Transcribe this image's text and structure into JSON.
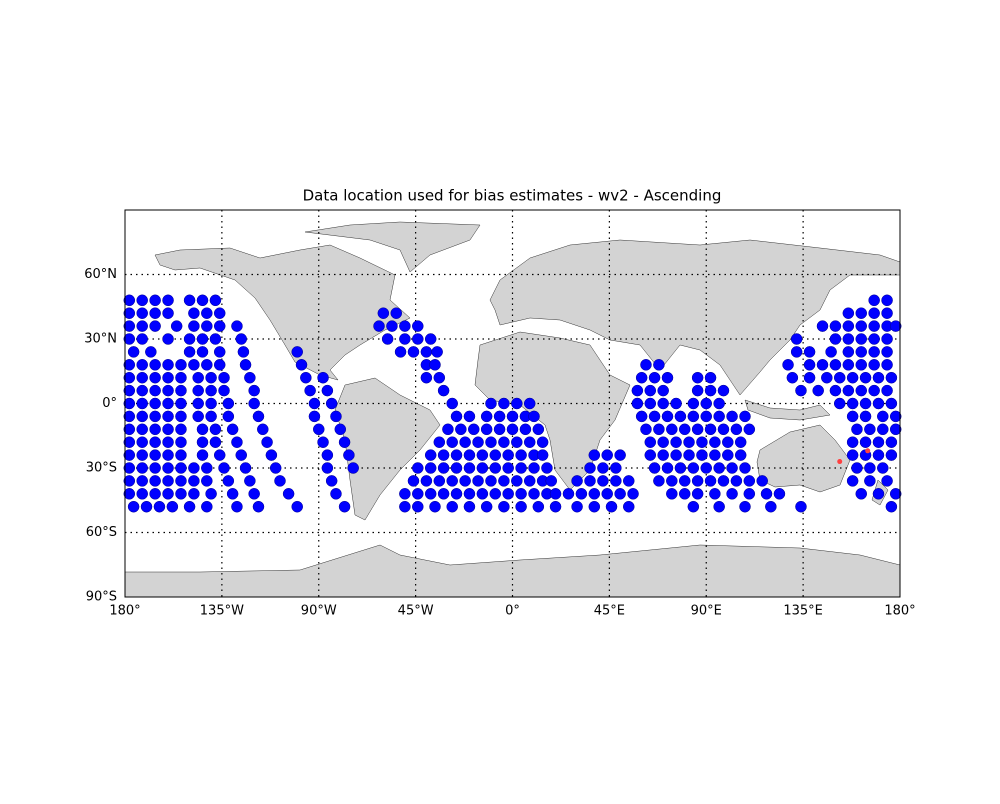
{
  "chart_data": {
    "type": "scatter",
    "title": "Data location used for bias estimates - wv2 - Ascending",
    "xlim": [
      -180,
      180
    ],
    "ylim": [
      -90,
      90
    ],
    "xticks": [
      {
        "value": -180,
        "label": "180°"
      },
      {
        "value": -135,
        "label": "135°W"
      },
      {
        "value": -90,
        "label": "90°W"
      },
      {
        "value": -45,
        "label": "45°W"
      },
      {
        "value": 0,
        "label": "0°"
      },
      {
        "value": 45,
        "label": "45°E"
      },
      {
        "value": 90,
        "label": "90°E"
      },
      {
        "value": 135,
        "label": "135°E"
      },
      {
        "value": 180,
        "label": "180°"
      }
    ],
    "yticks": [
      {
        "value": -90,
        "label": "90°S"
      },
      {
        "value": -60,
        "label": "60°S"
      },
      {
        "value": -30,
        "label": "30°S"
      },
      {
        "value": 0,
        "label": "0°"
      },
      {
        "value": 30,
        "label": "30°N"
      },
      {
        "value": 60,
        "label": "60°N"
      }
    ],
    "grid": true,
    "series": [
      {
        "color": "#0000ff",
        "y": 48,
        "x": [
          -178,
          -172,
          -166,
          -160,
          -150,
          -144,
          -138,
          168,
          174
        ]
      },
      {
        "color": "#0000ff",
        "y": 42,
        "x": [
          -178,
          -172,
          -166,
          -160,
          -148,
          -142,
          -136,
          -60,
          -54,
          156,
          162,
          168,
          174
        ]
      },
      {
        "color": "#0000ff",
        "y": 36,
        "x": [
          -178,
          -172,
          -166,
          -156,
          -148,
          -142,
          -136,
          -128,
          -62,
          -56,
          -50,
          -44,
          144,
          150,
          156,
          162,
          168,
          174,
          178
        ]
      },
      {
        "color": "#0000ff",
        "y": 30,
        "x": [
          -178,
          -172,
          -160,
          -150,
          -144,
          -138,
          -126,
          -58,
          -50,
          -44,
          -38,
          132,
          150,
          156,
          162,
          168,
          174
        ]
      },
      {
        "color": "#0000ff",
        "y": 24,
        "x": [
          -176,
          -168,
          -150,
          -144,
          -136,
          -125,
          -100,
          -52,
          -46,
          -40,
          -35,
          132,
          138,
          148,
          156,
          162,
          168,
          174
        ]
      },
      {
        "color": "#0000ff",
        "y": 18,
        "x": [
          -178,
          -172,
          -166,
          -160,
          -154,
          -148,
          -142,
          -136,
          -124,
          -98,
          -40,
          -36,
          62,
          68,
          128,
          138,
          144,
          150,
          156,
          162,
          168,
          174
        ]
      },
      {
        "color": "#0000ff",
        "y": 12,
        "x": [
          -178,
          -172,
          -166,
          -160,
          -154,
          -146,
          -140,
          -134,
          -122,
          -96,
          -88,
          -40,
          -34,
          60,
          66,
          72,
          86,
          92,
          130,
          138,
          146,
          152,
          158,
          164,
          170,
          176
        ]
      },
      {
        "color": "#0000ff",
        "y": 6,
        "x": [
          -178,
          -172,
          -166,
          -160,
          -154,
          -146,
          -140,
          -134,
          -120,
          -94,
          -86,
          -32,
          58,
          64,
          70,
          86,
          92,
          98,
          134,
          142,
          150,
          156,
          162,
          168,
          174
        ]
      },
      {
        "color": "#0000ff",
        "y": 0,
        "x": [
          -178,
          -172,
          -166,
          -160,
          -154,
          -146,
          -140,
          -132,
          -120,
          -92,
          -84,
          -28,
          -10,
          -4,
          2,
          8,
          58,
          64,
          70,
          76,
          84,
          90,
          96,
          152,
          158,
          164,
          170,
          176
        ]
      },
      {
        "color": "#0000ff",
        "y": -6,
        "x": [
          -178,
          -172,
          -166,
          -160,
          -154,
          -146,
          -140,
          -132,
          -118,
          -92,
          -82,
          -26,
          -20,
          -12,
          -6,
          0,
          6,
          10,
          60,
          66,
          72,
          78,
          84,
          90,
          96,
          102,
          108,
          158,
          164,
          172,
          178
        ]
      },
      {
        "color": "#0000ff",
        "y": -12,
        "x": [
          -178,
          -172,
          -166,
          -160,
          -154,
          -144,
          -138,
          -130,
          -116,
          -90,
          -80,
          -30,
          -24,
          -18,
          -12,
          -6,
          0,
          6,
          12,
          62,
          68,
          74,
          80,
          86,
          92,
          98,
          104,
          110,
          160,
          166,
          172,
          178
        ]
      },
      {
        "color": "#0000ff",
        "y": -18,
        "x": [
          -178,
          -172,
          -166,
          -160,
          -154,
          -144,
          -138,
          -128,
          -114,
          -88,
          -78,
          -34,
          -28,
          -22,
          -16,
          -10,
          -4,
          2,
          8,
          14,
          64,
          70,
          76,
          82,
          88,
          94,
          100,
          106,
          158,
          164,
          170,
          176
        ]
      },
      {
        "color": "#0000ff",
        "y": -24,
        "x": [
          -178,
          -172,
          -166,
          -160,
          -154,
          -144,
          -136,
          -126,
          -112,
          -86,
          -76,
          -38,
          -32,
          -26,
          -20,
          -14,
          -8,
          -2,
          4,
          10,
          14,
          38,
          44,
          50,
          64,
          70,
          76,
          82,
          88,
          94,
          100,
          106,
          158,
          164,
          170,
          176
        ]
      },
      {
        "color": "#0000ff",
        "y": -30,
        "x": [
          -178,
          -172,
          -166,
          -160,
          -154,
          -148,
          -142,
          -134,
          -124,
          -110,
          -86,
          -74,
          -44,
          -38,
          -32,
          -26,
          -20,
          -14,
          -8,
          -2,
          4,
          10,
          16,
          36,
          42,
          48,
          66,
          72,
          78,
          84,
          90,
          96,
          102,
          108,
          160,
          166,
          172
        ]
      },
      {
        "color": "#0000ff",
        "y": -36,
        "x": [
          -178,
          -172,
          -166,
          -160,
          -154,
          -148,
          -142,
          -132,
          -122,
          -108,
          -84,
          -46,
          -40,
          -34,
          -28,
          -22,
          -16,
          -10,
          -4,
          2,
          8,
          14,
          18,
          30,
          36,
          42,
          48,
          54,
          68,
          74,
          80,
          86,
          92,
          98,
          104,
          110,
          116,
          158,
          166,
          174
        ]
      },
      {
        "color": "#0000ff",
        "y": -42,
        "x": [
          -178,
          -172,
          -166,
          -160,
          -154,
          -148,
          -140,
          -130,
          -120,
          -104,
          -82,
          -50,
          -44,
          -38,
          -32,
          -26,
          -20,
          -14,
          -8,
          -2,
          4,
          10,
          16,
          20,
          26,
          32,
          38,
          44,
          50,
          56,
          74,
          80,
          86,
          94,
          102,
          110,
          118,
          124,
          162,
          170,
          178
        ]
      },
      {
        "color": "#0000ff",
        "y": -48,
        "x": [
          -176,
          -170,
          -164,
          -158,
          -150,
          -142,
          -128,
          -118,
          -100,
          -78,
          -50,
          -44,
          -36,
          -28,
          -20,
          -12,
          -4,
          4,
          12,
          20,
          30,
          38,
          46,
          54,
          84,
          96,
          108,
          120,
          134,
          176
        ]
      },
      {
        "color": "#ff4040",
        "y": -27,
        "x": [
          152
        ]
      },
      {
        "color": "#ff4040",
        "y": -22,
        "x": [
          165
        ]
      }
    ]
  }
}
